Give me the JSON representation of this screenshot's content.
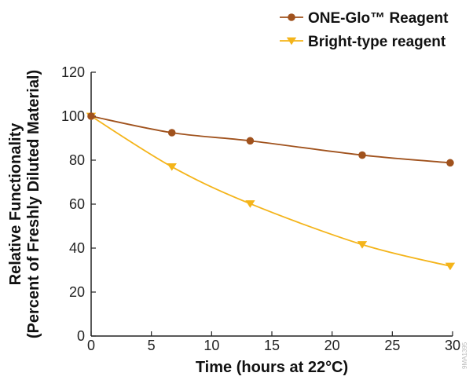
{
  "chart_data": {
    "type": "line",
    "xlabel": "Time (hours at 22°C)",
    "ylabel_line1": "Relative Functionality",
    "ylabel_line2": "(Percent of Freshly Diluted Material)",
    "xlim": [
      0,
      30
    ],
    "ylim": [
      0,
      120
    ],
    "x_ticks": [
      0,
      5,
      10,
      15,
      20,
      25,
      30
    ],
    "y_ticks": [
      0,
      20,
      40,
      60,
      80,
      100,
      120
    ],
    "grid": false,
    "legend_position": "top-right",
    "series": [
      {
        "name": "ONE-Glo™ Reagent",
        "color": "#a0521d",
        "marker": "circle",
        "x": [
          0,
          6.7,
          13.2,
          22.5,
          29.8
        ],
        "y": [
          100,
          92.5,
          88.8,
          82.3,
          78.8
        ]
      },
      {
        "name": "Bright-type reagent",
        "color": "#f4b41a",
        "marker": "triangle-down",
        "x": [
          0,
          6.7,
          13.2,
          22.5,
          29.8
        ],
        "y": [
          100,
          77.0,
          60.2,
          41.6,
          31.8
        ]
      }
    ],
    "watermark": "9MA1395"
  }
}
